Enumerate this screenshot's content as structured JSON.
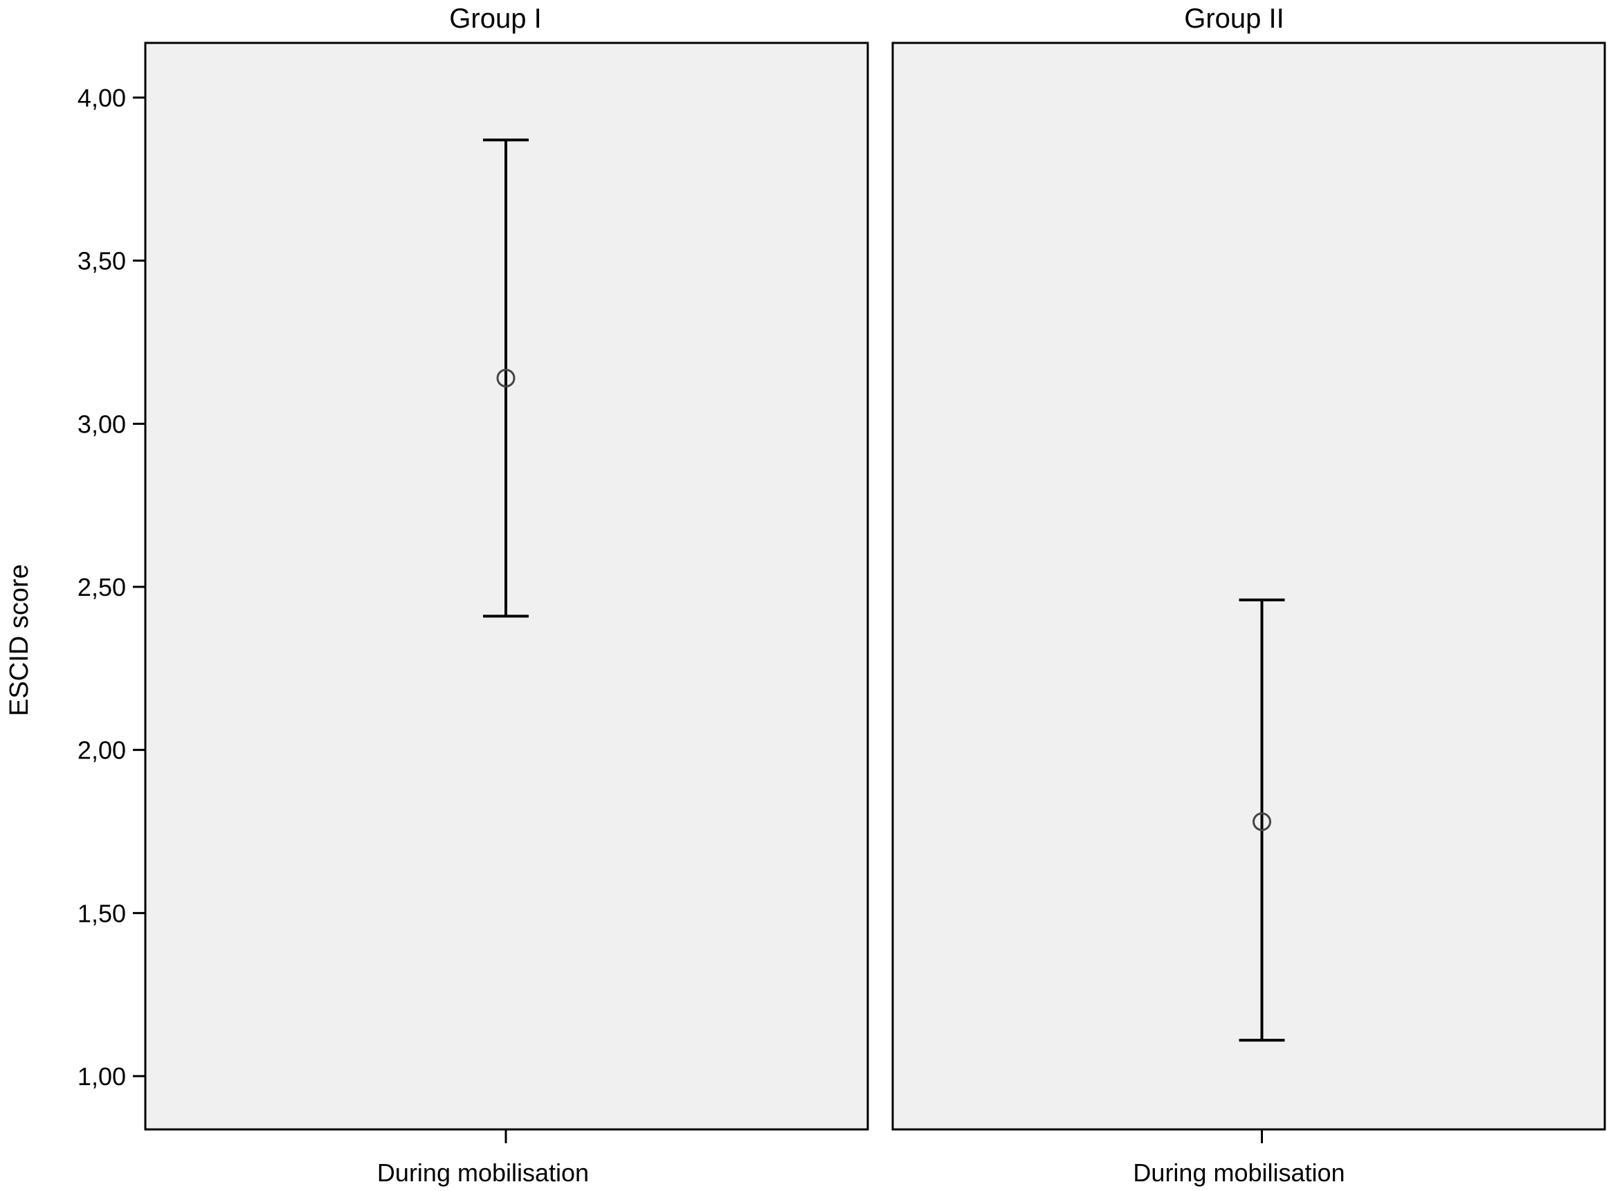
{
  "chart_data": {
    "type": "errorbar",
    "ylabel": "ESCID score",
    "yticks": [
      "1,00",
      "1,50",
      "2,00",
      "2,50",
      "3,00",
      "3,50",
      "4,00"
    ],
    "ytick_values": [
      1.0,
      1.5,
      2.0,
      2.5,
      3.0,
      3.5,
      4.0
    ],
    "ylim": [
      0.85,
      4.17
    ],
    "grid": false,
    "colors": {
      "panel_background": "#f0f0f0",
      "frame": "#000000",
      "error_bar": "#000000",
      "marker": "#444444"
    },
    "panels": [
      {
        "title": "Group I",
        "categories": [
          "During mobilisation"
        ],
        "mean": [
          3.14
        ],
        "lower": [
          2.41
        ],
        "upper": [
          3.87
        ]
      },
      {
        "title": "Group II",
        "categories": [
          "During mobilisation"
        ],
        "mean": [
          1.78
        ],
        "lower": [
          1.11
        ],
        "upper": [
          2.46
        ]
      }
    ]
  }
}
